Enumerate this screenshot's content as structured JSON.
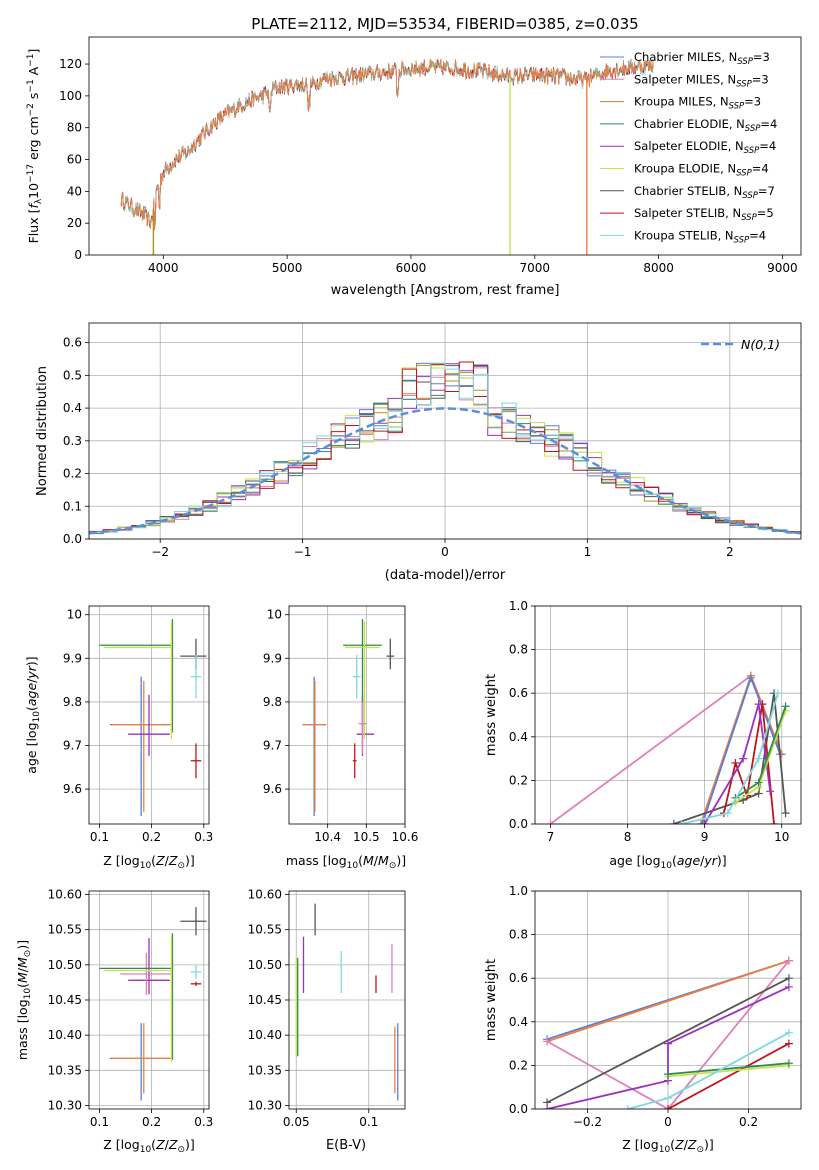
{
  "figure": {
    "title": "PLATE=2112, MJD=53534, FIBERID=0385, z=0.035"
  },
  "colors": {
    "Chabrier MILES": "#5b7fd6",
    "Salpeter MILES": "#e07fb8",
    "Kroupa MILES": "#b58b2c",
    "Chabrier ELODIE": "#2e8b57",
    "Salpeter ELODIE": "#9b30c0",
    "Kroupa ELODIE": "#c8e34a",
    "Chabrier STELIB": "#555555",
    "Salpeter STELIB": "#c0141c",
    "Kroupa STELIB": "#80d8e0",
    "orange": "#f07f3c",
    "pink": "#ea87bf",
    "gaussian": "#5b8fd9"
  },
  "chart_data": [
    {
      "id": "spectrum",
      "type": "line",
      "xlabel": "wavelength [Angstrom, rest frame]",
      "ylabel": "Flux [f_λ10^-17 erg cm^-2 s^-1 A^-1]",
      "xlim": [
        3400,
        9150
      ],
      "ylim": [
        0,
        137
      ],
      "xticks": [
        4000,
        5000,
        6000,
        7000,
        8000,
        9000
      ],
      "yticks": [
        0,
        20,
        40,
        60,
        80,
        100,
        120
      ],
      "grid": false,
      "legend": "top-right",
      "legend_entries": [
        {
          "label": "Chabrier MILES, N",
          "sub": "SSP",
          "tail": "=3"
        },
        {
          "label": "Salpeter MILES, N",
          "sub": "SSP",
          "tail": "=3"
        },
        {
          "label": "Kroupa MILES, N",
          "sub": "SSP",
          "tail": "=3"
        },
        {
          "label": "Chabrier ELODIE, N",
          "sub": "SSP",
          "tail": "=4"
        },
        {
          "label": "Salpeter ELODIE, N",
          "sub": "SSP",
          "tail": "=4"
        },
        {
          "label": "Kroupa ELODIE, N",
          "sub": "SSP",
          "tail": "=4"
        },
        {
          "label": "Chabrier STELIB, N",
          "sub": "SSP",
          "tail": "=7"
        },
        {
          "label": "Salpeter STELIB, N",
          "sub": "SSP",
          "tail": "=5"
        },
        {
          "label": "Kroupa STELIB, N",
          "sub": "SSP",
          "tail": "=4"
        }
      ],
      "continuum": [
        [
          3660,
          35
        ],
        [
          3750,
          30
        ],
        [
          3850,
          25
        ],
        [
          3900,
          20
        ],
        [
          3950,
          42
        ],
        [
          4000,
          52
        ],
        [
          4100,
          60
        ],
        [
          4200,
          65
        ],
        [
          4300,
          74
        ],
        [
          4400,
          82
        ],
        [
          4500,
          88
        ],
        [
          4600,
          93
        ],
        [
          4700,
          97
        ],
        [
          4800,
          100
        ],
        [
          4900,
          105
        ],
        [
          5000,
          106
        ],
        [
          5100,
          107
        ],
        [
          5200,
          107
        ],
        [
          5300,
          111
        ],
        [
          5500,
          112
        ],
        [
          5700,
          114
        ],
        [
          5900,
          116
        ],
        [
          6000,
          117
        ],
        [
          6200,
          118
        ],
        [
          6400,
          117
        ],
        [
          6600,
          115
        ],
        [
          6800,
          112
        ],
        [
          7000,
          113
        ],
        [
          7200,
          112
        ],
        [
          7400,
          110
        ],
        [
          7600,
          116
        ],
        [
          7800,
          118
        ],
        [
          7960,
          119
        ]
      ],
      "dropouts": [
        {
          "series": "Kroupa MILES",
          "x": 3920,
          "y": 0
        },
        {
          "series": "Kroupa ELODIE",
          "x": 6800,
          "y": 0
        },
        {
          "series": "orange",
          "x": 7420,
          "y": 0
        }
      ]
    },
    {
      "id": "residuals",
      "type": "histogram",
      "xlabel": "(data-model)/error",
      "ylabel": "Normed distribution",
      "xlim": [
        -2.5,
        2.5
      ],
      "ylim": [
        0,
        0.66
      ],
      "xticks": [
        -2,
        -1,
        0,
        1,
        2
      ],
      "yticks": [
        0.0,
        0.1,
        0.2,
        0.3,
        0.4,
        0.5,
        0.6
      ],
      "grid": true,
      "legend": "top-right",
      "legend_label": "N(0,1)",
      "bin_width": 0.1
    },
    {
      "id": "age_vs_Z",
      "type": "scatter",
      "xlabel": "Z [log10(Z/Z☉)]",
      "ylabel": "age  [log10(age/yr)]",
      "xlim": [
        0.08,
        0.31
      ],
      "ylim": [
        9.52,
        10.02
      ],
      "xticks": [
        0.1,
        0.2,
        0.3
      ],
      "yticks": [
        9.6,
        9.7,
        9.8,
        9.9,
        10.0
      ],
      "grid": true,
      "points": [
        {
          "series": "Chabrier MILES",
          "x": 0.18,
          "y": 9.748,
          "xerr": [
            0.06,
            0.06
          ],
          "yerr": [
            0.21,
            0.11
          ]
        },
        {
          "series": "orange",
          "x": 0.185,
          "y": 9.748,
          "xerr": [
            0.06,
            0.055
          ],
          "yerr": [
            0.2,
            0.1
          ]
        },
        {
          "series": "Salpeter ELODIE",
          "x": 0.195,
          "y": 9.726,
          "xerr": [
            0.04,
            0.04
          ],
          "yerr": [
            0.05,
            0.09
          ]
        },
        {
          "series": "Chabrier ELODIE",
          "x": 0.24,
          "y": 9.93,
          "xerr": [
            0.14,
            0.0
          ],
          "yerr": [
            0.2,
            0.06
          ]
        },
        {
          "series": "Kroupa ELODIE",
          "x": 0.238,
          "y": 9.925,
          "xerr": [
            0.13,
            0.0
          ],
          "yerr": [
            0.21,
            0.06
          ]
        },
        {
          "series": "Chabrier STELIB",
          "x": 0.285,
          "y": 9.905,
          "xerr": [
            0.03,
            0.02
          ],
          "yerr": [
            0.03,
            0.04
          ]
        },
        {
          "series": "Kroupa STELIB",
          "x": 0.285,
          "y": 9.858,
          "xerr": [
            0.01,
            0.01
          ],
          "yerr": [
            0.05,
            0.05
          ]
        },
        {
          "series": "Salpeter STELIB",
          "x": 0.285,
          "y": 9.665,
          "xerr": [
            0.01,
            0.01
          ],
          "yerr": [
            0.04,
            0.04
          ]
        }
      ]
    },
    {
      "id": "age_vs_mass",
      "type": "scatter",
      "xlabel": "mass [log10(M/M☉)]",
      "ylabel": "",
      "xlim": [
        10.3,
        10.6
      ],
      "ylim": [
        9.52,
        10.02
      ],
      "xticks": [
        10.4,
        10.5,
        10.6
      ],
      "yticks": [
        9.6,
        9.7,
        9.8,
        9.9,
        10.0
      ],
      "grid": true,
      "points": [
        {
          "series": "Chabrier MILES",
          "x": 10.365,
          "y": 9.748,
          "xerr": [
            0.03,
            0.03
          ],
          "yerr": [
            0.21,
            0.11
          ]
        },
        {
          "series": "orange",
          "x": 10.367,
          "y": 9.748,
          "xerr": [
            0.03,
            0.03
          ],
          "yerr": [
            0.2,
            0.1
          ]
        },
        {
          "series": "Salpeter ELODIE",
          "x": 10.49,
          "y": 9.726,
          "xerr": [
            0.015,
            0.03
          ],
          "yerr": [
            0.05,
            0.09
          ]
        },
        {
          "series": "Chabrier ELODIE",
          "x": 10.49,
          "y": 9.93,
          "xerr": [
            0.05,
            0.05
          ],
          "yerr": [
            0.2,
            0.06
          ]
        },
        {
          "series": "Kroupa ELODIE",
          "x": 10.495,
          "y": 9.925,
          "xerr": [
            0.05,
            0.04
          ],
          "yerr": [
            0.21,
            0.06
          ]
        },
        {
          "series": "Chabrier STELIB",
          "x": 10.562,
          "y": 9.905,
          "xerr": [
            0.01,
            0.01
          ],
          "yerr": [
            0.03,
            0.04
          ]
        },
        {
          "series": "Kroupa STELIB",
          "x": 10.475,
          "y": 9.858,
          "xerr": [
            0.01,
            0.01
          ],
          "yerr": [
            0.05,
            0.05
          ]
        },
        {
          "series": "Salpeter STELIB",
          "x": 10.47,
          "y": 9.665,
          "xerr": [
            0.005,
            0.005
          ],
          "yerr": [
            0.04,
            0.04
          ]
        },
        {
          "series": "Salpeter MILES",
          "x": 10.49,
          "y": 9.75,
          "xerr": [
            0.01,
            0.01
          ],
          "yerr": [
            0.07,
            0.05
          ]
        }
      ]
    },
    {
      "id": "weight_vs_age",
      "type": "line",
      "xlabel": "age  [log10(age/yr)]",
      "ylabel": "mass weight",
      "xlim": [
        6.8,
        10.25
      ],
      "ylim": [
        0.0,
        1.0
      ],
      "xticks": [
        7,
        8,
        9,
        10
      ],
      "yticks": [
        0.0,
        0.2,
        0.4,
        0.6,
        0.8,
        1.0
      ],
      "grid": true,
      "series": [
        {
          "name": "Salpeter MILES",
          "x": [
            7.0,
            9.6,
            10.0
          ],
          "y": [
            0.0,
            0.68,
            0.32
          ]
        },
        {
          "name": "orange",
          "x": [
            8.95,
            9.6,
            10.0
          ],
          "y": [
            0.0,
            0.68,
            0.32
          ]
        },
        {
          "name": "Chabrier MILES",
          "x": [
            8.97,
            9.6,
            9.98
          ],
          "y": [
            0.0,
            0.67,
            0.32
          ]
        },
        {
          "name": "Chabrier STELIB",
          "x": [
            8.6,
            9.5,
            9.7,
            9.9,
            10.05
          ],
          "y": [
            0.0,
            0.11,
            0.14,
            0.6,
            0.05
          ]
        },
        {
          "name": "Salpeter STELIB",
          "x": [
            9.25,
            9.4,
            9.55,
            9.75,
            9.9
          ],
          "y": [
            0.05,
            0.28,
            0.13,
            0.55,
            0.0
          ]
        },
        {
          "name": "Salpeter ELODIE",
          "x": [
            9.0,
            9.5,
            9.7,
            9.85
          ],
          "y": [
            0.0,
            0.3,
            0.55,
            0.15
          ]
        },
        {
          "name": "Kroupa ELODIE",
          "x": [
            9.4,
            9.7,
            10.05
          ],
          "y": [
            0.1,
            0.17,
            0.52
          ]
        },
        {
          "name": "Chabrier ELODIE",
          "x": [
            9.4,
            9.7,
            10.05
          ],
          "y": [
            0.12,
            0.19,
            0.54
          ]
        },
        {
          "name": "Kroupa STELIB",
          "x": [
            8.7,
            9.3,
            9.7,
            9.95
          ],
          "y": [
            0.0,
            0.05,
            0.3,
            0.6
          ]
        }
      ]
    },
    {
      "id": "mass_vs_Z",
      "type": "scatter",
      "xlabel": "Z [log10(Z/Z☉)]",
      "ylabel": "mass [log10(M/M☉)]",
      "xlim": [
        0.08,
        0.31
      ],
      "ylim": [
        10.295,
        10.605
      ],
      "xticks": [
        0.1,
        0.2,
        0.3
      ],
      "yticks": [
        10.3,
        10.35,
        10.4,
        10.45,
        10.5,
        10.55,
        10.6
      ],
      "grid": true,
      "points": [
        {
          "series": "Chabrier MILES",
          "x": 0.18,
          "y": 10.367,
          "xerr": [
            0.06,
            0.06
          ],
          "yerr": [
            0.06,
            0.05
          ]
        },
        {
          "series": "orange",
          "x": 0.185,
          "y": 10.367,
          "xerr": [
            0.06,
            0.055
          ],
          "yerr": [
            0.05,
            0.05
          ]
        },
        {
          "series": "Salpeter ELODIE",
          "x": 0.195,
          "y": 10.478,
          "xerr": [
            0.04,
            0.04
          ],
          "yerr": [
            0.02,
            0.06
          ]
        },
        {
          "series": "Salpeter MILES",
          "x": 0.19,
          "y": 10.487,
          "xerr": [
            0.05,
            0.05
          ],
          "yerr": [
            0.03,
            0.03
          ]
        },
        {
          "series": "Chabrier ELODIE",
          "x": 0.24,
          "y": 10.495,
          "xerr": [
            0.14,
            0.0
          ],
          "yerr": [
            0.13,
            0.05
          ]
        },
        {
          "series": "Kroupa ELODIE",
          "x": 0.238,
          "y": 10.492,
          "xerr": [
            0.13,
            0.0
          ],
          "yerr": [
            0.13,
            0.05
          ]
        },
        {
          "series": "Chabrier STELIB",
          "x": 0.285,
          "y": 10.562,
          "xerr": [
            0.03,
            0.02
          ],
          "yerr": [
            0.02,
            0.02
          ]
        },
        {
          "series": "Kroupa STELIB",
          "x": 0.285,
          "y": 10.49,
          "xerr": [
            0.01,
            0.01
          ],
          "yerr": [
            0.01,
            0.01
          ]
        },
        {
          "series": "Salpeter STELIB",
          "x": 0.285,
          "y": 10.473,
          "xerr": [
            0.01,
            0.01
          ],
          "yerr": [
            0.003,
            0.003
          ]
        }
      ]
    },
    {
      "id": "mass_vs_ebv",
      "type": "scatter",
      "xlabel": "E(B-V)",
      "ylabel": "",
      "xlim": [
        0.045,
        0.125
      ],
      "ylim": [
        10.295,
        10.605
      ],
      "xticks": [
        0.05,
        0.1
      ],
      "yticks": [
        10.3,
        10.35,
        10.4,
        10.45,
        10.5,
        10.55,
        10.6
      ],
      "grid": true,
      "points": [
        {
          "series": "Kroupa ELODIE",
          "x": 0.05,
          "y": 10.41,
          "xerr": [
            0,
            0
          ],
          "yerr": [
            0.04,
            0.1
          ]
        },
        {
          "series": "Chabrier ELODIE",
          "x": 0.051,
          "y": 10.41,
          "xerr": [
            0,
            0
          ],
          "yerr": [
            0.04,
            0.1
          ]
        },
        {
          "series": "Salpeter ELODIE",
          "x": 0.055,
          "y": 10.5,
          "xerr": [
            0,
            0
          ],
          "yerr": [
            0.04,
            0.04
          ]
        },
        {
          "series": "Chabrier STELIB",
          "x": 0.063,
          "y": 10.562,
          "xerr": [
            0,
            0
          ],
          "yerr": [
            0.02,
            0.025
          ]
        },
        {
          "series": "Kroupa STELIB",
          "x": 0.081,
          "y": 10.49,
          "xerr": [
            0,
            0
          ],
          "yerr": [
            0.03,
            0.03
          ]
        },
        {
          "series": "Salpeter STELIB",
          "x": 0.105,
          "y": 10.47,
          "xerr": [
            0,
            0
          ],
          "yerr": [
            0.01,
            0.015
          ]
        },
        {
          "series": "Salpeter MILES",
          "x": 0.116,
          "y": 10.495,
          "xerr": [
            0,
            0
          ],
          "yerr": [
            0.035,
            0.035
          ]
        },
        {
          "series": "orange",
          "x": 0.118,
          "y": 10.367,
          "xerr": [
            0,
            0
          ],
          "yerr": [
            0.05,
            0.045
          ]
        },
        {
          "series": "Chabrier MILES",
          "x": 0.12,
          "y": 10.367,
          "xerr": [
            0,
            0
          ],
          "yerr": [
            0.06,
            0.05
          ]
        }
      ]
    },
    {
      "id": "weight_vs_Z",
      "type": "line",
      "xlabel": "Z [log10(Z/Z☉)]",
      "ylabel": "mass weight",
      "xlim": [
        -0.33,
        0.33
      ],
      "ylim": [
        0.0,
        1.0
      ],
      "xticks": [
        -0.2,
        0.0,
        0.2
      ],
      "yticks": [
        0.0,
        0.2,
        0.4,
        0.6,
        0.8,
        1.0
      ],
      "grid": true,
      "series": [
        {
          "name": "Chabrier MILES",
          "x": [
            -0.3,
            0.3
          ],
          "y": [
            0.32,
            0.68
          ]
        },
        {
          "name": "orange",
          "x": [
            -0.3,
            0.3
          ],
          "y": [
            0.31,
            0.68
          ]
        },
        {
          "name": "Salpeter MILES",
          "x": [
            -0.3,
            0.0,
            0.3
          ],
          "y": [
            0.31,
            0.0,
            0.68
          ]
        },
        {
          "name": "Chabrier STELIB",
          "x": [
            -0.3,
            0.3
          ],
          "y": [
            0.03,
            0.6
          ]
        },
        {
          "name": "Salpeter ELODIE",
          "x": [
            -0.3,
            0.0,
            0.0,
            0.3
          ],
          "y": [
            0.0,
            0.13,
            0.3,
            0.56
          ]
        },
        {
          "name": "Salpeter STELIB",
          "x": [
            0.0,
            0.3
          ],
          "y": [
            0.0,
            0.3
          ]
        },
        {
          "name": "Kroupa ELODIE",
          "x": [
            0.0,
            0.3
          ],
          "y": [
            0.15,
            0.2
          ]
        },
        {
          "name": "Chabrier ELODIE",
          "x": [
            0.0,
            0.3
          ],
          "y": [
            0.16,
            0.21
          ]
        },
        {
          "name": "Kroupa STELIB",
          "x": [
            -0.1,
            0.0,
            0.3
          ],
          "y": [
            0.0,
            0.05,
            0.35
          ]
        }
      ]
    }
  ]
}
